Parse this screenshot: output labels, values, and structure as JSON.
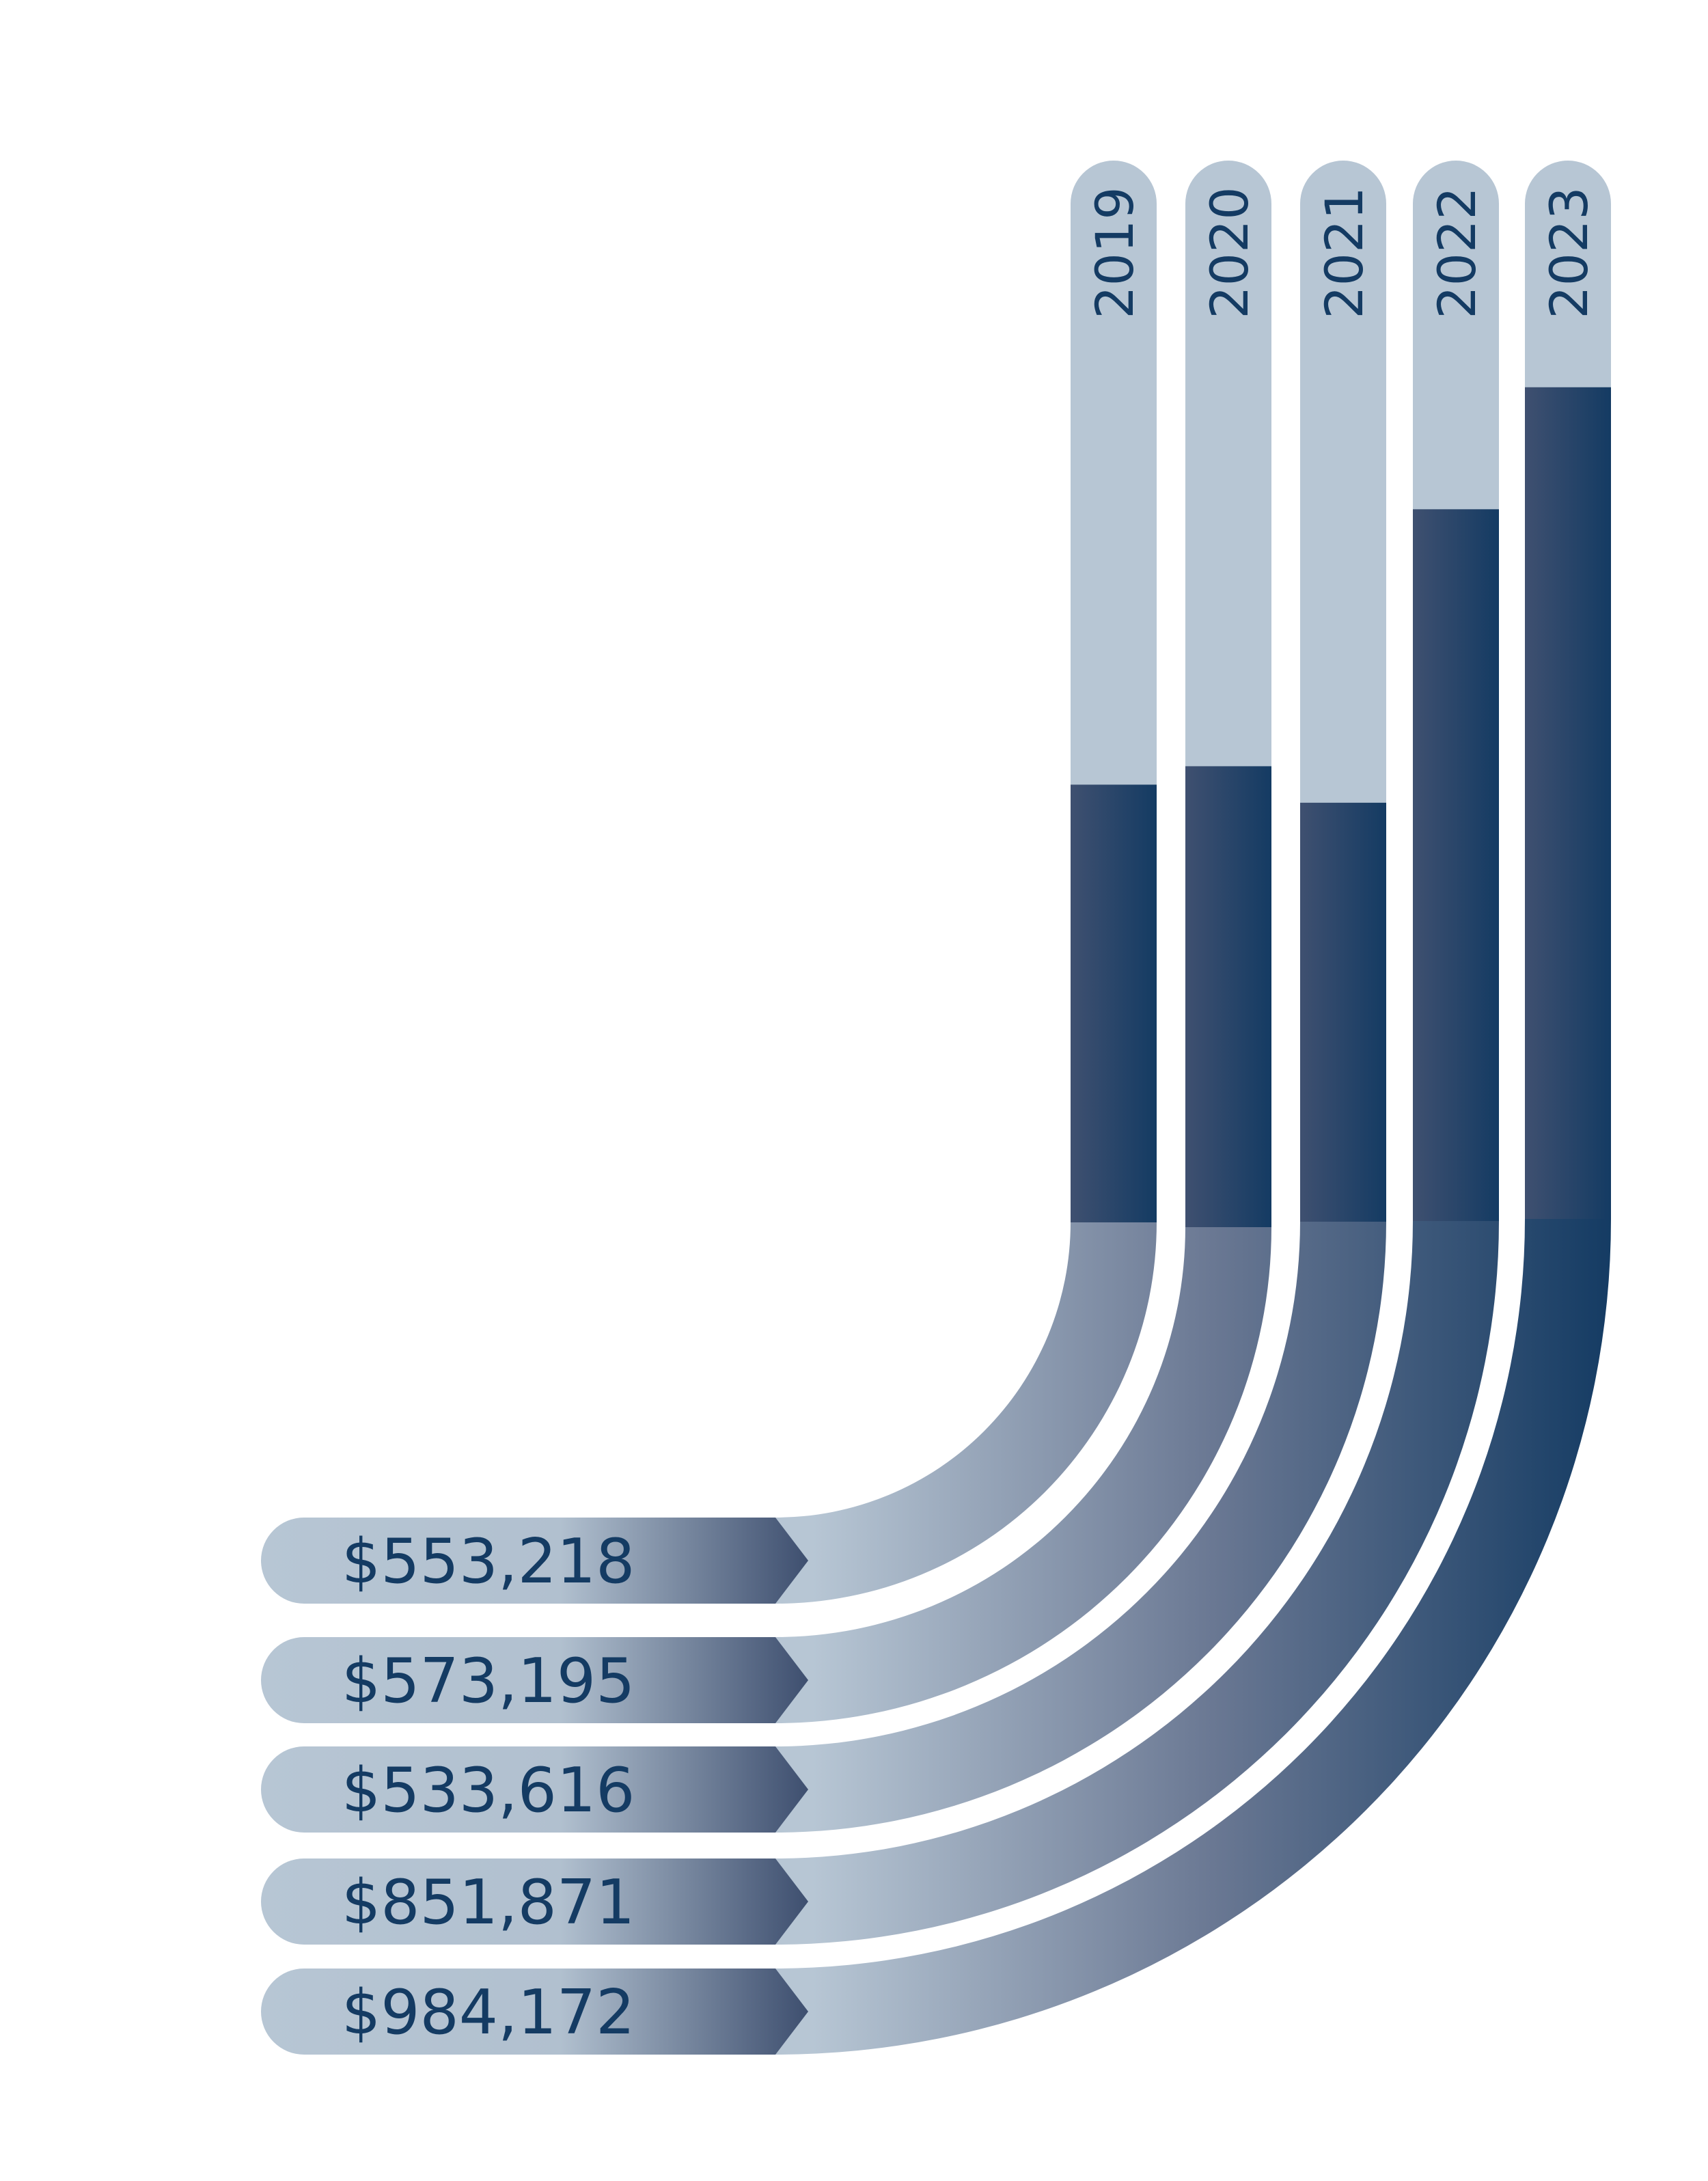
{
  "chart_data": {
    "type": "bar",
    "title": "",
    "xlabel": "",
    "ylabel": "",
    "categories": [
      "2019",
      "2020",
      "2021",
      "2022",
      "2023"
    ],
    "values": [
      553218,
      573195,
      533616,
      851871,
      984172
    ],
    "value_labels": [
      "$553,218",
      "$573,195",
      "$533,616",
      "$851,871",
      "$984,172"
    ],
    "ylim": [
      0,
      1230000
    ],
    "orientation": "vertical bars bending into horizontal value labels",
    "grid": false,
    "legend": "none",
    "colors": {
      "track": "#b7c6d4",
      "fill_dark": "#143b63",
      "fill_mid": "#3f5070",
      "text": "#143b63",
      "background": "#ffffff"
    }
  }
}
